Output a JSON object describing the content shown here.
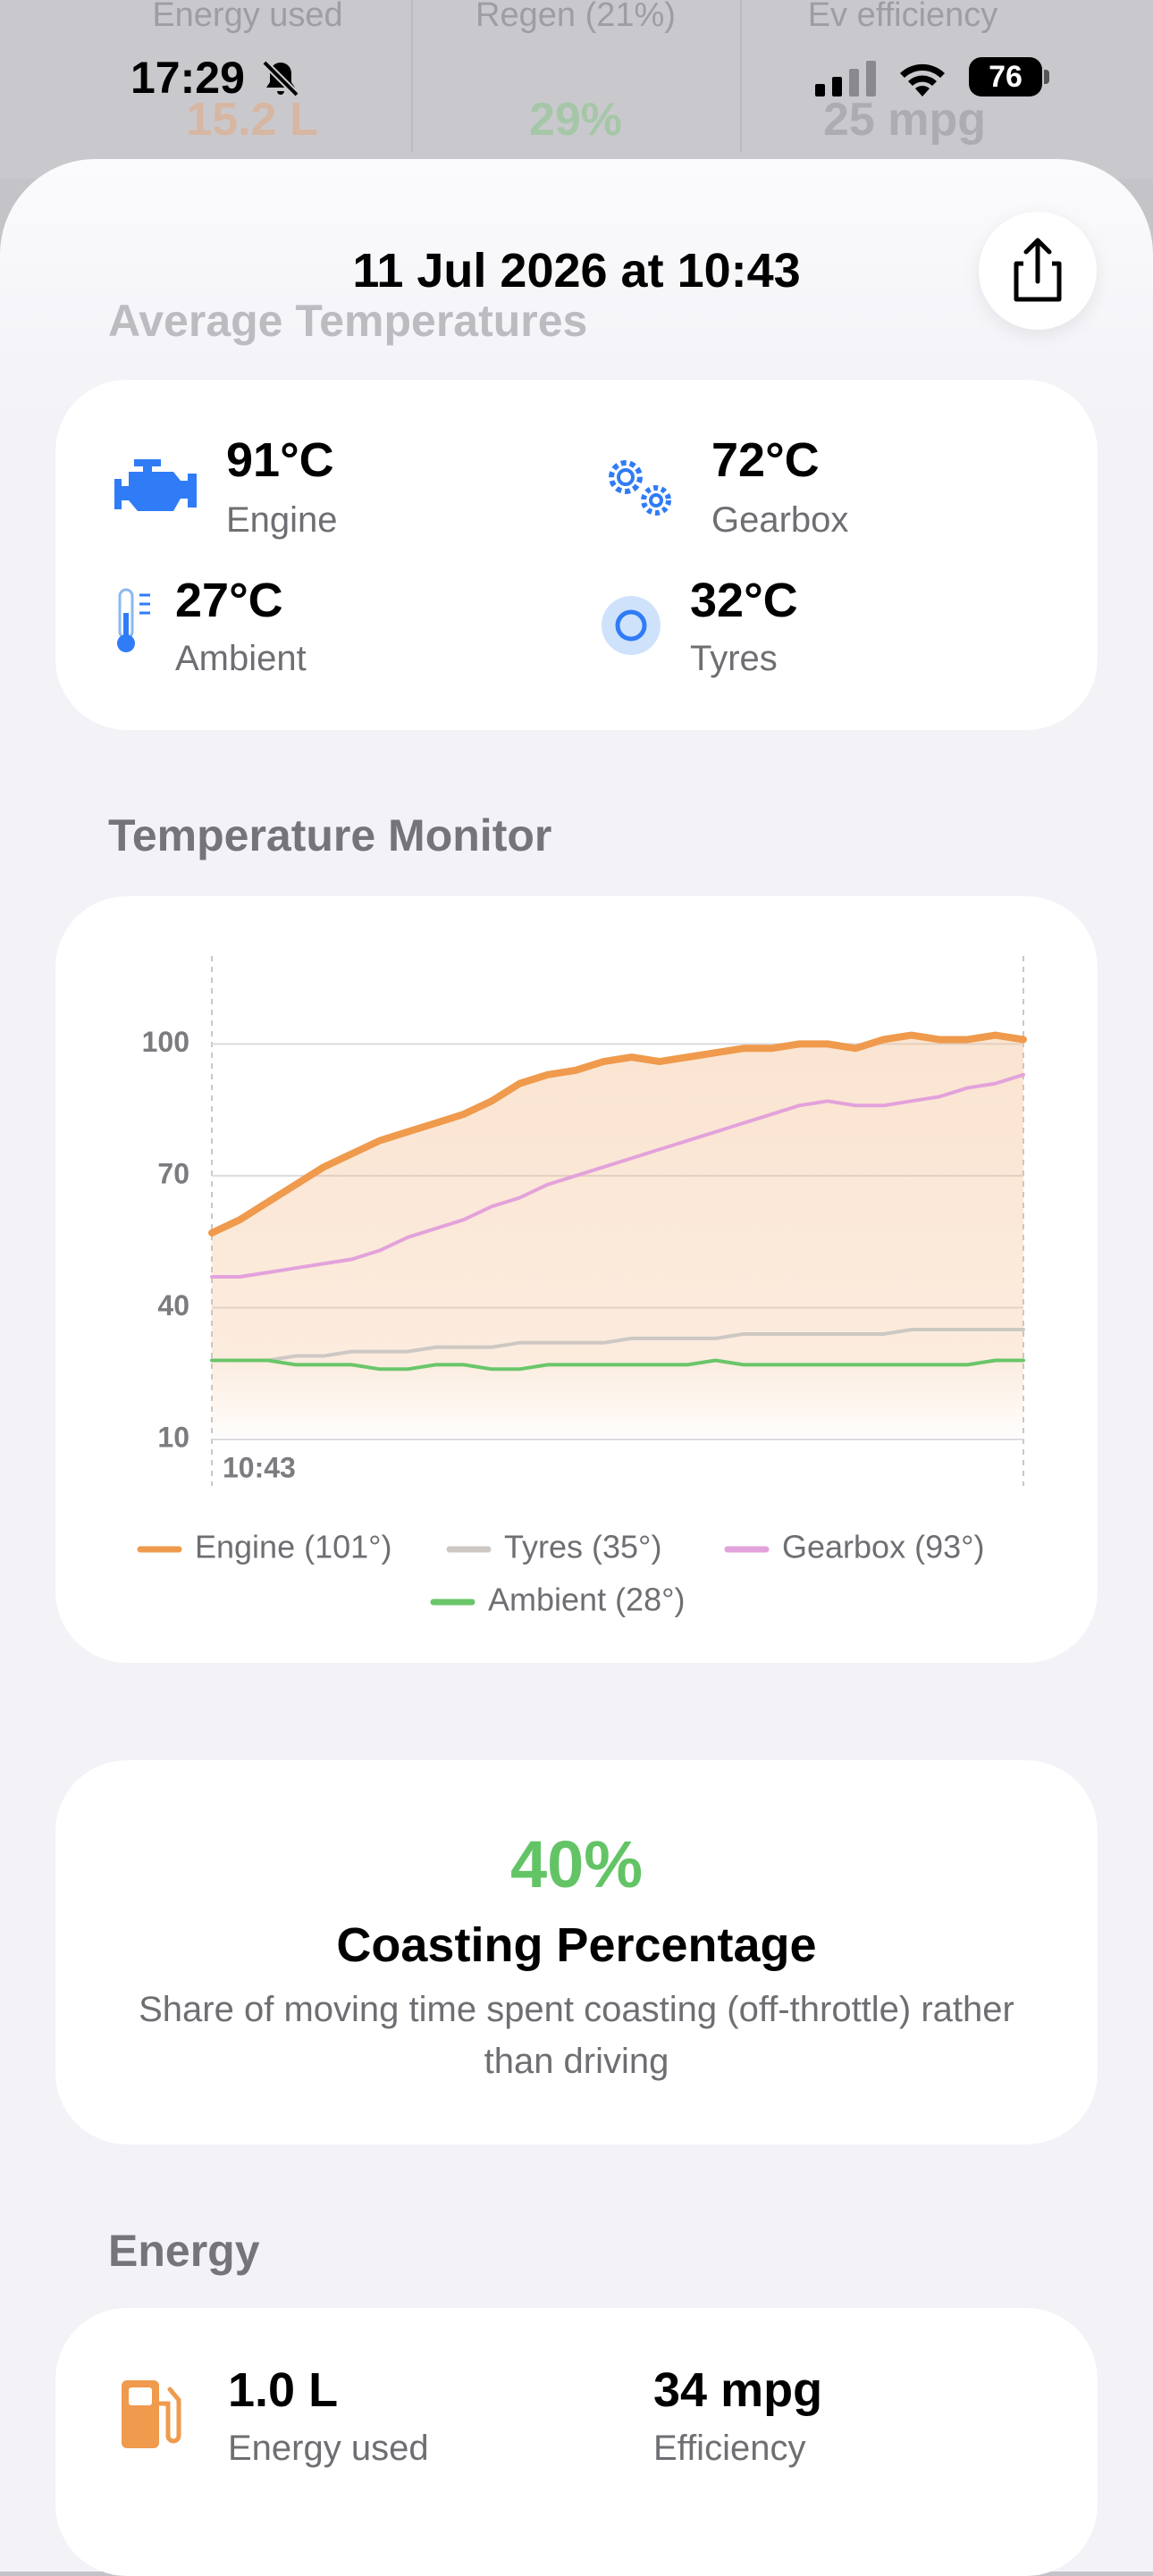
{
  "status_bar": {
    "time": "17:29",
    "battery": "76"
  },
  "background": {
    "labels": [
      "Energy used",
      "Regen (21%)",
      "Ev efficiency"
    ],
    "values": [
      "15.2 L",
      "29%",
      "25 mpg"
    ]
  },
  "header": {
    "title": "11 Jul 2026 at 10:43"
  },
  "average_temperatures": {
    "title": "Average Temperatures",
    "items": [
      {
        "value": "91°C",
        "label": "Engine"
      },
      {
        "value": "72°C",
        "label": "Gearbox"
      },
      {
        "value": "27°C",
        "label": "Ambient"
      },
      {
        "value": "32°C",
        "label": "Tyres"
      }
    ]
  },
  "chart_data": {
    "type": "line",
    "title": "Temperature Monitor",
    "categories": [
      "10:43",
      null,
      null,
      null,
      null,
      null,
      null,
      null,
      null,
      null,
      null,
      null,
      null,
      null,
      null,
      null,
      null,
      null,
      null,
      null,
      null,
      null,
      null,
      null,
      null,
      null,
      null,
      null,
      null,
      null
    ],
    "series": [
      {
        "name": "Engine (101°)",
        "color": "#ef9a4c",
        "area": true,
        "values": [
          57,
          60,
          64,
          68,
          72,
          75,
          78,
          80,
          82,
          84,
          87,
          91,
          93,
          94,
          96,
          97,
          96,
          97,
          98,
          99,
          99,
          100,
          100,
          99,
          101,
          102,
          101,
          101,
          102,
          101
        ]
      },
      {
        "name": "Tyres (35°)",
        "color": "#cdc8c3",
        "values": [
          28,
          28,
          28,
          29,
          29,
          30,
          30,
          30,
          31,
          31,
          31,
          32,
          32,
          32,
          32,
          33,
          33,
          33,
          33,
          34,
          34,
          34,
          34,
          34,
          34,
          35,
          35,
          35,
          35,
          35
        ]
      },
      {
        "name": "Gearbox (93°)",
        "color": "#e3a2db",
        "values": [
          47,
          47,
          48,
          49,
          50,
          51,
          53,
          56,
          58,
          60,
          63,
          65,
          68,
          70,
          72,
          74,
          76,
          78,
          80,
          82,
          84,
          86,
          87,
          86,
          86,
          87,
          88,
          90,
          91,
          93
        ]
      },
      {
        "name": "Ambient (28°)",
        "color": "#6ac66a",
        "values": [
          28,
          28,
          28,
          27,
          27,
          27,
          26,
          26,
          27,
          27,
          26,
          26,
          27,
          27,
          27,
          27,
          27,
          27,
          28,
          27,
          27,
          27,
          27,
          27,
          27,
          27,
          27,
          27,
          28,
          28
        ]
      }
    ],
    "ylim": [
      10,
      120
    ],
    "yticks": [
      10,
      40,
      70,
      100
    ],
    "grid": true
  },
  "coasting": {
    "value": "40%",
    "title": "Coasting Percentage",
    "description": "Share of moving time spent coasting (off-throttle) rather than driving"
  },
  "energy": {
    "title": "Energy",
    "items": [
      {
        "value": "1.0 L",
        "label": "Energy used"
      },
      {
        "value": "34 mpg",
        "label": "Efficiency"
      }
    ]
  }
}
